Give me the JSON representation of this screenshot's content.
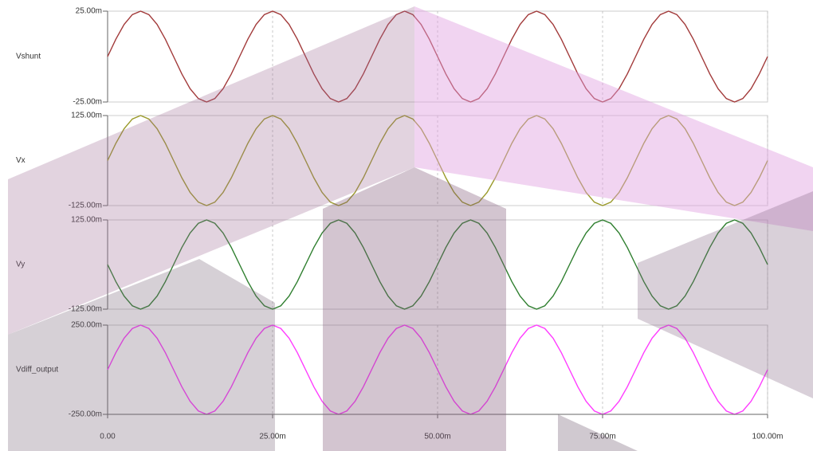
{
  "chart_data": [
    {
      "type": "line",
      "x": [
        0,
        0.00125,
        0.0025,
        0.00375,
        0.005,
        0.00625,
        0.0075,
        0.00875,
        0.01,
        0.01125,
        0.0125,
        0.01375,
        0.015,
        0.01625,
        0.0175,
        0.01875,
        0.02,
        0.02125,
        0.0225,
        0.02375,
        0.025,
        0.02625,
        0.0275,
        0.02875,
        0.03,
        0.03125,
        0.0325,
        0.03375,
        0.035,
        0.03625,
        0.0375,
        0.03875,
        0.04,
        0.04125,
        0.0425,
        0.04375,
        0.045,
        0.04625,
        0.0475,
        0.04875,
        0.05,
        0.05125,
        0.0525,
        0.05375,
        0.055,
        0.05625,
        0.0575,
        0.05875,
        0.06,
        0.06125,
        0.0625,
        0.06375,
        0.065,
        0.06625,
        0.0675,
        0.06875,
        0.07,
        0.07125,
        0.0725,
        0.07375,
        0.075,
        0.07625,
        0.0775,
        0.07875,
        0.08,
        0.08125,
        0.0825,
        0.08375,
        0.085,
        0.08625,
        0.0875,
        0.08875,
        0.09,
        0.09125,
        0.0925,
        0.09375,
        0.095,
        0.09625,
        0.0975,
        0.09875,
        0.1
      ],
      "series": [
        {
          "name": "Vshunt",
          "color": "#a23a3a",
          "values": [
            0,
            0.009567,
            0.017678,
            0.023097,
            0.025,
            0.023097,
            0.017678,
            0.009567,
            0,
            -0.009567,
            -0.017678,
            -0.023097,
            -0.025,
            -0.023097,
            -0.017678,
            -0.009567,
            0,
            0.009567,
            0.017678,
            0.023097,
            0.025,
            0.023097,
            0.017678,
            0.009567,
            0,
            -0.009567,
            -0.017678,
            -0.023097,
            -0.025,
            -0.023097,
            -0.017678,
            -0.009567,
            0,
            0.009567,
            0.017678,
            0.023097,
            0.025,
            0.023097,
            0.017678,
            0.009567,
            0,
            -0.009567,
            -0.017678,
            -0.023097,
            -0.025,
            -0.023097,
            -0.017678,
            -0.009567,
            0,
            0.009567,
            0.017678,
            0.023097,
            0.025,
            0.023097,
            0.017678,
            0.009567,
            0,
            -0.009567,
            -0.017678,
            -0.023097,
            -0.025,
            -0.023097,
            -0.017678,
            -0.009567,
            0,
            0.009567,
            0.017678,
            0.023097,
            0.025,
            0.023097,
            0.017678,
            0.009567,
            0,
            -0.009567,
            -0.017678,
            -0.023097,
            -0.025,
            -0.023097,
            -0.017678,
            -0.009567,
            0
          ]
        }
      ],
      "xlim": [
        0,
        0.1
      ],
      "ylim": [
        -0.025,
        0.025
      ],
      "yticks": [
        {
          "value": -0.025,
          "label": "-25.00m"
        },
        {
          "value": 0.025,
          "label": "25.00m"
        }
      ]
    },
    {
      "type": "line",
      "x": [
        0,
        0.00125,
        0.0025,
        0.00375,
        0.005,
        0.00625,
        0.0075,
        0.00875,
        0.01,
        0.01125,
        0.0125,
        0.01375,
        0.015,
        0.01625,
        0.0175,
        0.01875,
        0.02,
        0.02125,
        0.0225,
        0.02375,
        0.025,
        0.02625,
        0.0275,
        0.02875,
        0.03,
        0.03125,
        0.0325,
        0.03375,
        0.035,
        0.03625,
        0.0375,
        0.03875,
        0.04,
        0.04125,
        0.0425,
        0.04375,
        0.045,
        0.04625,
        0.0475,
        0.04875,
        0.05,
        0.05125,
        0.0525,
        0.05375,
        0.055,
        0.05625,
        0.0575,
        0.05875,
        0.06,
        0.06125,
        0.0625,
        0.06375,
        0.065,
        0.06625,
        0.0675,
        0.06875,
        0.07,
        0.07125,
        0.0725,
        0.07375,
        0.075,
        0.07625,
        0.0775,
        0.07875,
        0.08,
        0.08125,
        0.0825,
        0.08375,
        0.085,
        0.08625,
        0.0875,
        0.08875,
        0.09,
        0.09125,
        0.0925,
        0.09375,
        0.095,
        0.09625,
        0.0975,
        0.09875,
        0.1
      ],
      "series": [
        {
          "name": "Vx",
          "color": "#9a9a2a",
          "values": [
            0,
            0.047835,
            0.088388,
            0.115485,
            0.125,
            0.115485,
            0.088388,
            0.047835,
            0,
            -0.047835,
            -0.088388,
            -0.115485,
            -0.125,
            -0.115485,
            -0.088388,
            -0.047835,
            0,
            0.047835,
            0.088388,
            0.115485,
            0.125,
            0.115485,
            0.088388,
            0.047835,
            0,
            -0.047835,
            -0.088388,
            -0.115485,
            -0.125,
            -0.115485,
            -0.088388,
            -0.047835,
            0,
            0.047835,
            0.088388,
            0.115485,
            0.125,
            0.115485,
            0.088388,
            0.047835,
            0,
            -0.047835,
            -0.088388,
            -0.115485,
            -0.125,
            -0.115485,
            -0.088388,
            -0.047835,
            0,
            0.047835,
            0.088388,
            0.115485,
            0.125,
            0.115485,
            0.088388,
            0.047835,
            0,
            -0.047835,
            -0.088388,
            -0.115485,
            -0.125,
            -0.115485,
            -0.088388,
            -0.047835,
            0,
            0.047835,
            0.088388,
            0.115485,
            0.125,
            0.115485,
            0.088388,
            0.047835,
            0,
            -0.047835,
            -0.088388,
            -0.115485,
            -0.125,
            -0.115485,
            -0.088388,
            -0.047835,
            0
          ]
        }
      ],
      "xlim": [
        0,
        0.1
      ],
      "ylim": [
        -0.125,
        0.125
      ],
      "yticks": [
        {
          "value": -0.125,
          "label": "-125.00m"
        },
        {
          "value": 0.125,
          "label": "125.00m"
        }
      ]
    },
    {
      "type": "line",
      "x": [
        0,
        0.00125,
        0.0025,
        0.00375,
        0.005,
        0.00625,
        0.0075,
        0.00875,
        0.01,
        0.01125,
        0.0125,
        0.01375,
        0.015,
        0.01625,
        0.0175,
        0.01875,
        0.02,
        0.02125,
        0.0225,
        0.02375,
        0.025,
        0.02625,
        0.0275,
        0.02875,
        0.03,
        0.03125,
        0.0325,
        0.03375,
        0.035,
        0.03625,
        0.0375,
        0.03875,
        0.04,
        0.04125,
        0.0425,
        0.04375,
        0.045,
        0.04625,
        0.0475,
        0.04875,
        0.05,
        0.05125,
        0.0525,
        0.05375,
        0.055,
        0.05625,
        0.0575,
        0.05875,
        0.06,
        0.06125,
        0.0625,
        0.06375,
        0.065,
        0.06625,
        0.0675,
        0.06875,
        0.07,
        0.07125,
        0.0725,
        0.07375,
        0.075,
        0.07625,
        0.0775,
        0.07875,
        0.08,
        0.08125,
        0.0825,
        0.08375,
        0.085,
        0.08625,
        0.0875,
        0.08875,
        0.09,
        0.09125,
        0.0925,
        0.09375,
        0.095,
        0.09625,
        0.0975,
        0.09875,
        0.1
      ],
      "series": [
        {
          "name": "Vy",
          "color": "#2f7f2f",
          "values": [
            0,
            -0.047835,
            -0.088388,
            -0.115485,
            -0.125,
            -0.115485,
            -0.088388,
            -0.047835,
            0,
            0.047835,
            0.088388,
            0.115485,
            0.125,
            0.115485,
            0.088388,
            0.047835,
            0,
            -0.047835,
            -0.088388,
            -0.115485,
            -0.125,
            -0.115485,
            -0.088388,
            -0.047835,
            0,
            0.047835,
            0.088388,
            0.115485,
            0.125,
            0.115485,
            0.088388,
            0.047835,
            0,
            -0.047835,
            -0.088388,
            -0.115485,
            -0.125,
            -0.115485,
            -0.088388,
            -0.047835,
            0,
            0.047835,
            0.088388,
            0.115485,
            0.125,
            0.115485,
            0.088388,
            0.047835,
            0,
            -0.047835,
            -0.088388,
            -0.115485,
            -0.125,
            -0.115485,
            -0.088388,
            -0.047835,
            0,
            0.047835,
            0.088388,
            0.115485,
            0.125,
            0.115485,
            0.088388,
            0.047835,
            0,
            -0.047835,
            -0.088388,
            -0.115485,
            -0.125,
            -0.115485,
            -0.088388,
            -0.047835,
            0,
            0.047835,
            0.088388,
            0.115485,
            0.125,
            0.115485,
            0.088388,
            0.047835,
            0
          ]
        }
      ],
      "xlim": [
        0,
        0.1
      ],
      "ylim": [
        -0.125,
        0.125
      ],
      "yticks": [
        {
          "value": -0.125,
          "label": "-125.00m"
        },
        {
          "value": 0.125,
          "label": "125.00m"
        }
      ]
    },
    {
      "type": "line",
      "x": [
        0,
        0.00125,
        0.0025,
        0.00375,
        0.005,
        0.00625,
        0.0075,
        0.00875,
        0.01,
        0.01125,
        0.0125,
        0.01375,
        0.015,
        0.01625,
        0.0175,
        0.01875,
        0.02,
        0.02125,
        0.0225,
        0.02375,
        0.025,
        0.02625,
        0.0275,
        0.02875,
        0.03,
        0.03125,
        0.0325,
        0.03375,
        0.035,
        0.03625,
        0.0375,
        0.03875,
        0.04,
        0.04125,
        0.0425,
        0.04375,
        0.045,
        0.04625,
        0.0475,
        0.04875,
        0.05,
        0.05125,
        0.0525,
        0.05375,
        0.055,
        0.05625,
        0.0575,
        0.05875,
        0.06,
        0.06125,
        0.0625,
        0.06375,
        0.065,
        0.06625,
        0.0675,
        0.06875,
        0.07,
        0.07125,
        0.0725,
        0.07375,
        0.075,
        0.07625,
        0.0775,
        0.07875,
        0.08,
        0.08125,
        0.0825,
        0.08375,
        0.085,
        0.08625,
        0.0875,
        0.08875,
        0.09,
        0.09125,
        0.0925,
        0.09375,
        0.095,
        0.09625,
        0.0975,
        0.09875,
        0.1
      ],
      "series": [
        {
          "name": "Vdiff_output",
          "color": "#ff3cff",
          "values": [
            0,
            0.095671,
            0.176777,
            0.23097,
            0.25,
            0.23097,
            0.176777,
            0.095671,
            0,
            -0.095671,
            -0.176777,
            -0.23097,
            -0.25,
            -0.23097,
            -0.176777,
            -0.095671,
            0,
            0.095671,
            0.176777,
            0.23097,
            0.25,
            0.23097,
            0.176777,
            0.095671,
            0,
            -0.095671,
            -0.176777,
            -0.23097,
            -0.25,
            -0.23097,
            -0.176777,
            -0.095671,
            0,
            0.095671,
            0.176777,
            0.23097,
            0.25,
            0.23097,
            0.176777,
            0.095671,
            0,
            -0.095671,
            -0.176777,
            -0.23097,
            -0.25,
            -0.23097,
            -0.176777,
            -0.095671,
            0,
            0.095671,
            0.176777,
            0.23097,
            0.25,
            0.23097,
            0.176777,
            0.095671,
            0,
            -0.095671,
            -0.176777,
            -0.23097,
            -0.25,
            -0.23097,
            -0.176777,
            -0.095671,
            0,
            0.095671,
            0.176777,
            0.23097,
            0.25,
            0.23097,
            0.176777,
            0.095671,
            0,
            -0.095671,
            -0.176777,
            -0.23097,
            -0.25,
            -0.23097,
            -0.176777,
            -0.095671,
            0
          ]
        }
      ],
      "xlim": [
        0,
        0.1
      ],
      "ylim": [
        -0.25,
        0.25
      ],
      "yticks": [
        {
          "value": -0.25,
          "label": "-250.00m"
        },
        {
          "value": 0.25,
          "label": "250.00m"
        }
      ],
      "xticks": [
        {
          "value": 0,
          "label": "0.00"
        },
        {
          "value": 0.025,
          "label": "25.00m"
        },
        {
          "value": 0.05,
          "label": "50.00m"
        },
        {
          "value": 0.075,
          "label": "75.00m"
        },
        {
          "value": 0.1,
          "label": "100.00m"
        }
      ],
      "grid": true
    }
  ]
}
